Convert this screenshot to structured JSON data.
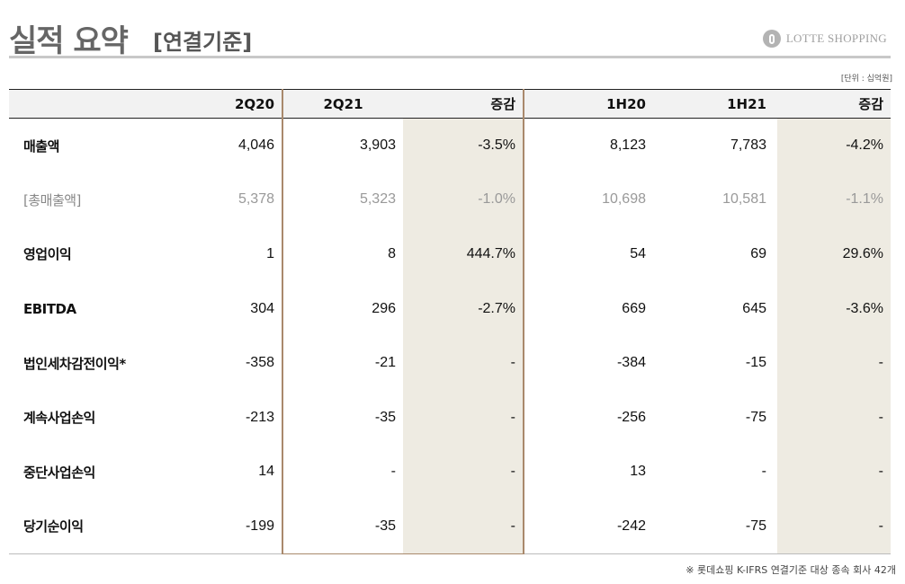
{
  "title": {
    "main": "실적 요약",
    "sub": "[연결기준]"
  },
  "logo": {
    "text": "LOTTE SHOPPING",
    "icon": "lotte-logo-icon"
  },
  "unit_label": "[단위 : 십억원]",
  "table": {
    "headers": [
      "",
      "2Q20",
      "2Q21",
      "증감",
      "1H20",
      "1H21",
      "증감"
    ],
    "rows": [
      {
        "label": "매출액",
        "values": [
          "4,046",
          "3,903",
          "-3.5%",
          "8,123",
          "7,783",
          "-4.2%"
        ]
      },
      {
        "label": "[총매출액]",
        "values": [
          "5,378",
          "5,323",
          "-1.0%",
          "10,698",
          "10,581",
          "-1.1%"
        ]
      },
      {
        "label": "영업이익",
        "values": [
          "1",
          "8",
          "444.7%",
          "54",
          "69",
          "29.6%"
        ]
      },
      {
        "label": "EBITDA",
        "values": [
          "304",
          "296",
          "-2.7%",
          "669",
          "645",
          "-3.6%"
        ]
      },
      {
        "label": "법인세차감전이익*",
        "values": [
          "-358",
          "-21",
          "-",
          "-384",
          "-15",
          "-"
        ]
      },
      {
        "label": "계속사업손익",
        "values": [
          "-213",
          "-35",
          "-",
          "-256",
          "-75",
          "-"
        ]
      },
      {
        "label": "중단사업손익",
        "values": [
          "14",
          "-",
          "-",
          "13",
          "-",
          "-"
        ]
      },
      {
        "label": "당기순이익",
        "values": [
          "-199",
          "-35",
          "-",
          "-242",
          "-75",
          "-"
        ]
      }
    ]
  },
  "footnote": "※ 롯데쇼핑 K-IFRS 연결기준 대상 종속 회사 42개",
  "colors": {
    "highlight_border": "#a9896c",
    "diff_column_bg": "#eeebe2",
    "header_bg": "#f2f2f2"
  }
}
